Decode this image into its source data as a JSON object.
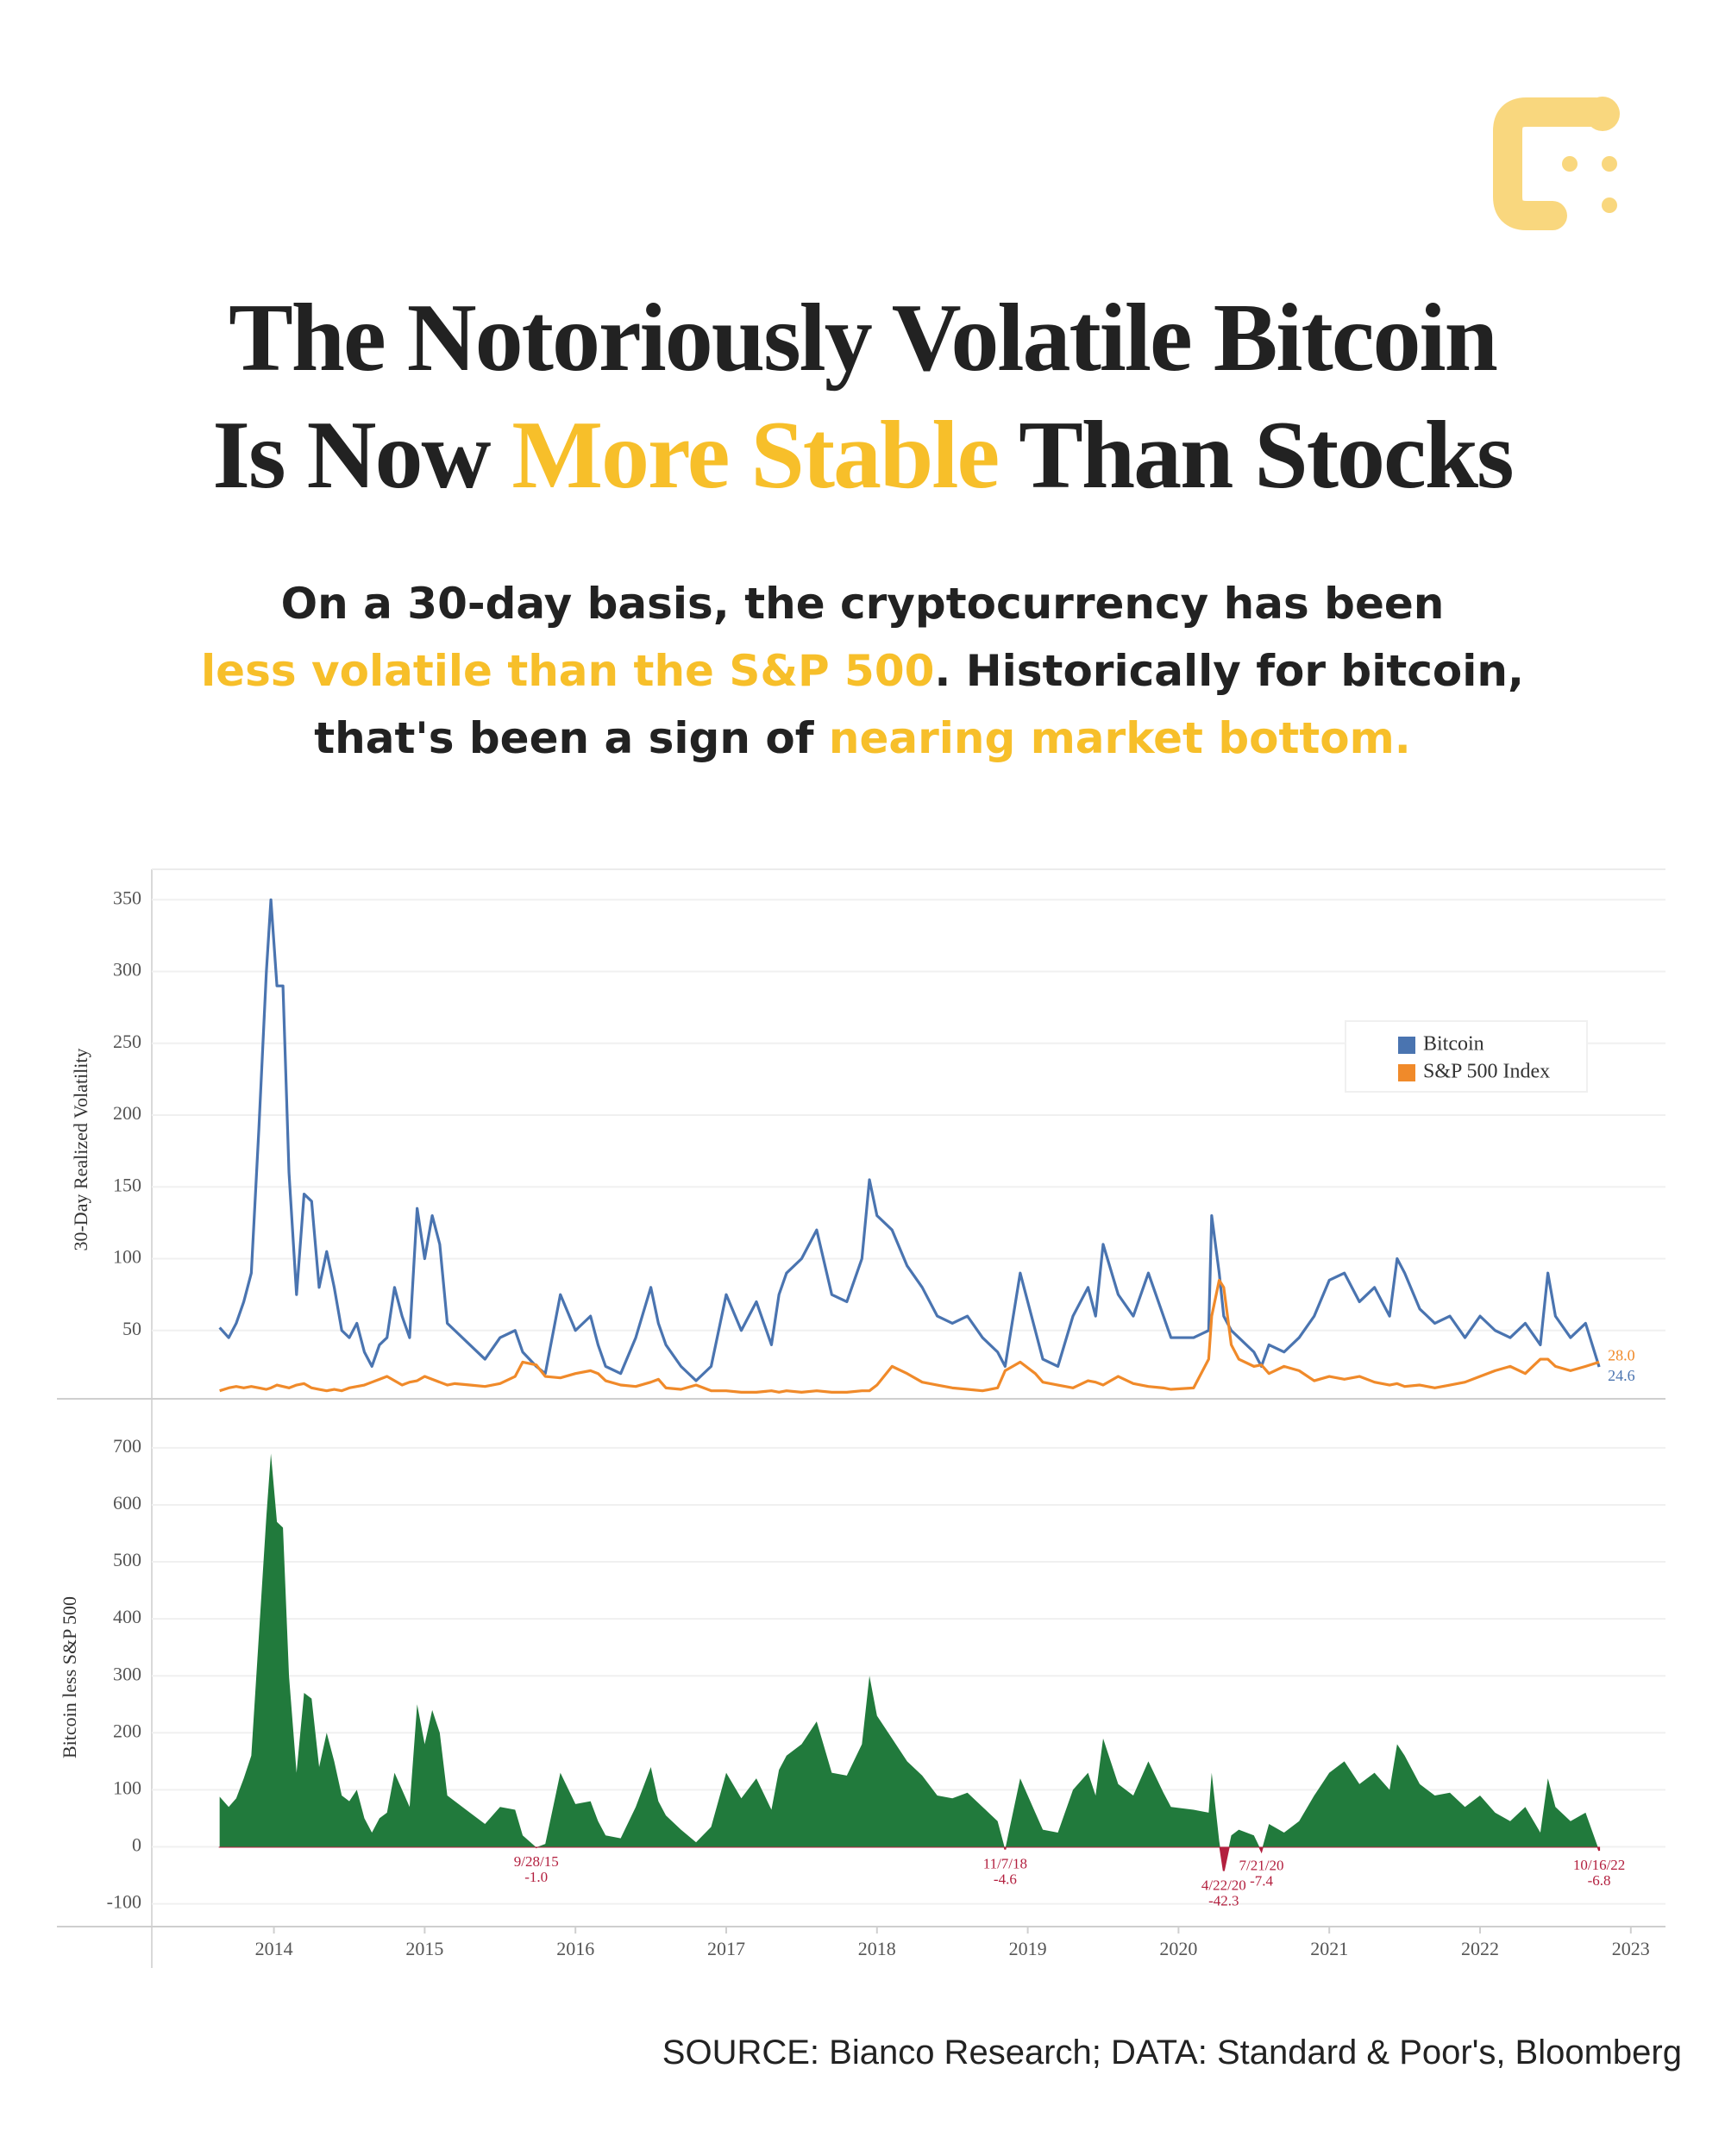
{
  "header": {
    "title": [
      [
        {
          "text": "The Notoriously Volatile Bitcoin",
          "highlight": false
        }
      ],
      [
        {
          "text": "Is Now ",
          "highlight": false
        },
        {
          "text": "More Stable",
          "highlight": true
        },
        {
          "text": " Than Stocks",
          "highlight": false
        }
      ]
    ],
    "subtitle": [
      [
        {
          "text": "On a 30-day basis, the cryptocurrency has been",
          "highlight": false
        }
      ],
      [
        {
          "text": "less volatile than the S&P 500",
          "highlight": true
        },
        {
          "text": ". Historically for bitcoin,",
          "highlight": false
        }
      ],
      [
        {
          "text": "that's been a sign of ",
          "highlight": false
        },
        {
          "text": "nearing market bottom.",
          "highlight": true
        }
      ]
    ]
  },
  "chart_data": [
    {
      "type": "line",
      "ylabel": "30-Day Realized Volatility",
      "x": [
        2013.64,
        2013.7,
        2013.75,
        2013.8,
        2013.85,
        2013.9,
        2013.95,
        2013.98,
        2014.02,
        2014.06,
        2014.1,
        2014.15,
        2014.2,
        2014.25,
        2014.3,
        2014.35,
        2014.4,
        2014.45,
        2014.5,
        2014.55,
        2014.6,
        2014.65,
        2014.7,
        2014.75,
        2014.8,
        2014.85,
        2014.9,
        2014.95,
        2015.0,
        2015.05,
        2015.1,
        2015.15,
        2015.2,
        2015.3,
        2015.4,
        2015.5,
        2015.6,
        2015.65,
        2015.74,
        2015.8,
        2015.9,
        2016.0,
        2016.1,
        2016.15,
        2016.2,
        2016.3,
        2016.4,
        2016.5,
        2016.55,
        2016.6,
        2016.7,
        2016.8,
        2016.9,
        2017.0,
        2017.1,
        2017.2,
        2017.3,
        2017.35,
        2017.4,
        2017.5,
        2017.6,
        2017.7,
        2017.8,
        2017.9,
        2017.95,
        2018.0,
        2018.1,
        2018.2,
        2018.3,
        2018.4,
        2018.5,
        2018.6,
        2018.7,
        2018.8,
        2018.85,
        2018.95,
        2019.05,
        2019.1,
        2019.2,
        2019.3,
        2019.4,
        2019.45,
        2019.5,
        2019.6,
        2019.7,
        2019.8,
        2019.9,
        2019.95,
        2020.1,
        2020.2,
        2020.22,
        2020.27,
        2020.3,
        2020.35,
        2020.4,
        2020.5,
        2020.55,
        2020.6,
        2020.7,
        2020.8,
        2020.9,
        2021.0,
        2021.1,
        2021.2,
        2021.3,
        2021.4,
        2021.45,
        2021.5,
        2021.6,
        2021.7,
        2021.8,
        2021.9,
        2022.0,
        2022.1,
        2022.2,
        2022.3,
        2022.4,
        2022.45,
        2022.5,
        2022.6,
        2022.7,
        2022.79
      ],
      "series": [
        {
          "name": "Bitcoin",
          "color": "#4a74b0",
          "values": [
            52,
            45,
            55,
            70,
            90,
            190,
            300,
            350,
            290,
            290,
            160,
            75,
            145,
            140,
            80,
            105,
            80,
            50,
            45,
            55,
            35,
            25,
            40,
            45,
            80,
            60,
            45,
            135,
            100,
            130,
            110,
            55,
            50,
            40,
            30,
            45,
            50,
            35,
            25,
            20,
            75,
            50,
            60,
            40,
            25,
            20,
            45,
            80,
            55,
            40,
            25,
            15,
            25,
            75,
            50,
            70,
            40,
            75,
            90,
            100,
            120,
            75,
            70,
            100,
            155,
            130,
            120,
            95,
            80,
            60,
            55,
            60,
            45,
            35,
            25,
            90,
            50,
            30,
            25,
            60,
            80,
            60,
            110,
            75,
            60,
            90,
            60,
            45,
            45,
            50,
            130,
            90,
            60,
            50,
            45,
            35,
            25,
            40,
            35,
            45,
            60,
            85,
            90,
            70,
            80,
            60,
            100,
            90,
            65,
            55,
            60,
            45,
            60,
            50,
            45,
            55,
            40,
            90,
            60,
            45,
            55,
            24.6
          ]
        },
        {
          "name": "S&P 500 Index",
          "color": "#f08a2a",
          "values": [
            8,
            10,
            11,
            10,
            11,
            10,
            9,
            10,
            12,
            11,
            10,
            12,
            13,
            10,
            9,
            8,
            9,
            8,
            10,
            11,
            12,
            14,
            16,
            18,
            15,
            12,
            14,
            15,
            18,
            16,
            14,
            12,
            13,
            12,
            11,
            13,
            18,
            28,
            26,
            18,
            17,
            20,
            22,
            20,
            15,
            12,
            11,
            14,
            16,
            10,
            9,
            12,
            8,
            8,
            7,
            7,
            8,
            7,
            8,
            7,
            8,
            7,
            7,
            8,
            8,
            12,
            25,
            20,
            14,
            12,
            10,
            9,
            8,
            10,
            22,
            28,
            20,
            14,
            12,
            10,
            15,
            14,
            12,
            18,
            13,
            11,
            10,
            9,
            10,
            30,
            60,
            85,
            80,
            40,
            30,
            25,
            26,
            20,
            25,
            22,
            15,
            18,
            16,
            18,
            14,
            12,
            13,
            11,
            12,
            10,
            12,
            14,
            18,
            22,
            25,
            20,
            30,
            30,
            25,
            22,
            25,
            28
          ]
        }
      ],
      "xlim": [
        2013.19,
        2023.23
      ],
      "ylim": [
        0,
        370
      ],
      "yticks": [
        50,
        100,
        150,
        200,
        250,
        300,
        350
      ],
      "grid": true,
      "legend": "upper right",
      "annotations": [
        {
          "text": "28.0",
          "x": 2022.79,
          "value": 28,
          "series": 1
        },
        {
          "text": "24.6",
          "x": 2022.79,
          "value": 24.6,
          "series": 0
        }
      ]
    },
    {
      "type": "area",
      "ylabel": "Bitcoin less S&P 500",
      "x": [
        2013.64,
        2013.7,
        2013.75,
        2013.8,
        2013.85,
        2013.9,
        2013.95,
        2013.98,
        2014.02,
        2014.06,
        2014.1,
        2014.15,
        2014.2,
        2014.25,
        2014.3,
        2014.35,
        2014.4,
        2014.45,
        2014.5,
        2014.55,
        2014.6,
        2014.65,
        2014.7,
        2014.75,
        2014.8,
        2014.85,
        2014.9,
        2014.95,
        2015.0,
        2015.05,
        2015.1,
        2015.15,
        2015.2,
        2015.3,
        2015.4,
        2015.5,
        2015.6,
        2015.65,
        2015.74,
        2015.8,
        2015.9,
        2016.0,
        2016.1,
        2016.15,
        2016.2,
        2016.3,
        2016.4,
        2016.5,
        2016.55,
        2016.6,
        2016.7,
        2016.8,
        2016.9,
        2017.0,
        2017.1,
        2017.2,
        2017.3,
        2017.35,
        2017.4,
        2017.5,
        2017.6,
        2017.7,
        2017.8,
        2017.9,
        2017.95,
        2018.0,
        2018.1,
        2018.2,
        2018.3,
        2018.4,
        2018.5,
        2018.6,
        2018.7,
        2018.8,
        2018.85,
        2018.95,
        2019.05,
        2019.1,
        2019.2,
        2019.3,
        2019.4,
        2019.45,
        2019.5,
        2019.6,
        2019.7,
        2019.8,
        2019.9,
        2019.95,
        2020.1,
        2020.2,
        2020.22,
        2020.27,
        2020.3,
        2020.35,
        2020.4,
        2020.5,
        2020.55,
        2020.6,
        2020.7,
        2020.8,
        2020.9,
        2021.0,
        2021.1,
        2021.2,
        2021.3,
        2021.4,
        2021.45,
        2021.5,
        2021.6,
        2021.7,
        2021.8,
        2021.9,
        2022.0,
        2022.1,
        2022.2,
        2022.3,
        2022.4,
        2022.45,
        2022.5,
        2022.6,
        2022.7,
        2022.79
      ],
      "values": [
        88,
        70,
        85,
        120,
        160,
        370,
        580,
        690,
        570,
        560,
        300,
        130,
        270,
        260,
        140,
        200,
        150,
        90,
        80,
        100,
        50,
        25,
        50,
        60,
        130,
        100,
        70,
        250,
        180,
        240,
        200,
        90,
        80,
        60,
        40,
        70,
        65,
        20,
        -1,
        5,
        130,
        75,
        80,
        45,
        20,
        15,
        70,
        140,
        80,
        55,
        30,
        8,
        35,
        130,
        85,
        120,
        65,
        135,
        160,
        180,
        220,
        130,
        125,
        180,
        300,
        230,
        190,
        150,
        125,
        90,
        85,
        95,
        70,
        45,
        -4.6,
        120,
        60,
        30,
        25,
        100,
        130,
        90,
        190,
        110,
        90,
        150,
        95,
        70,
        65,
        60,
        130,
        10,
        -42.3,
        20,
        30,
        20,
        -7.4,
        40,
        25,
        45,
        90,
        130,
        150,
        110,
        130,
        100,
        180,
        160,
        110,
        90,
        95,
        70,
        90,
        60,
        45,
        70,
        25,
        120,
        70,
        45,
        60,
        -6.8
      ],
      "color": "#217a3c",
      "negative_color": "#b3203f",
      "xlim": [
        2013.19,
        2023.23
      ],
      "xticks": [
        2014,
        2015,
        2016,
        2017,
        2018,
        2019,
        2020,
        2021,
        2022,
        2023
      ],
      "ylim": [
        -140,
        780
      ],
      "yticks": [
        -100,
        0,
        100,
        200,
        300,
        400,
        500,
        600,
        700
      ],
      "grid": true,
      "annotations": [
        {
          "date": "9/28/15",
          "text": "-1.0",
          "x": 2015.74,
          "value": -1
        },
        {
          "date": "11/7/18",
          "text": "-4.6",
          "x": 2018.85,
          "value": -4.6
        },
        {
          "date": "4/22/20",
          "text": "-42.3",
          "x": 2020.3,
          "value": -42.3
        },
        {
          "date": "7/21/20",
          "text": "-7.4",
          "x": 2020.55,
          "value": -7.4
        },
        {
          "date": "10/16/22",
          "text": "-6.8",
          "x": 2022.79,
          "value": -6.8
        }
      ]
    }
  ],
  "source": "SOURCE: Bianco Research; DATA: Standard & Poor's, Bloomberg"
}
